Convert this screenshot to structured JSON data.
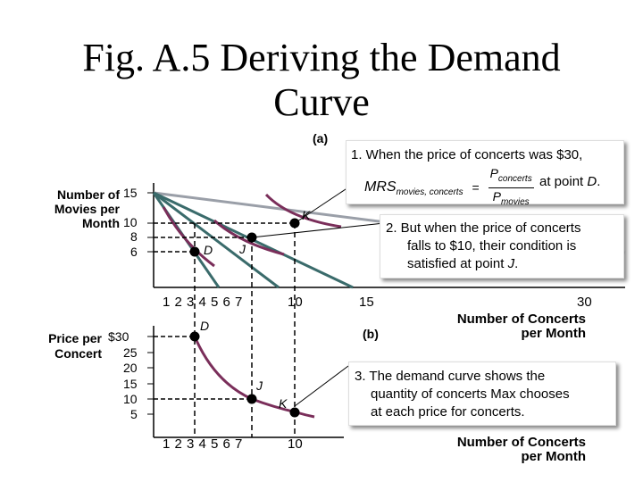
{
  "title": {
    "line1": "Fig. A.5 Deriving the Demand",
    "line2": "Curve"
  },
  "panel_a": {
    "label": "(a)",
    "y_axis_label": [
      "Number of",
      "Movies per",
      "Month"
    ],
    "y_ticks": [
      "15",
      "10",
      "8",
      "6"
    ],
    "x_ticks": [
      "1 2 3 4 5 6 7",
      "10",
      "15",
      "30"
    ],
    "x_axis_label": [
      "Number of Concerts",
      "per Month"
    ],
    "points": {
      "D": "D",
      "J": "J",
      "K": "K"
    }
  },
  "panel_b": {
    "label": "(b)",
    "y_axis_label": [
      "Price per",
      "Concert"
    ],
    "y_ticks": [
      "$30",
      "25",
      "20",
      "15",
      "10",
      "5"
    ],
    "x_ticks": [
      "1 2 3 4 5 6 7",
      "10"
    ],
    "x_axis_label": [
      "Number of Concerts",
      "per Month"
    ],
    "points": {
      "D": "D",
      "J": "J",
      "K": "K"
    }
  },
  "callouts": {
    "c1": {
      "line1": "1. When the price of concerts was $30,",
      "mrs": "MRS",
      "mrs_sub": "movies, concerts",
      "eq": "=",
      "num": "P",
      "num_sub": "concerts",
      "den": "P",
      "den_sub": "movies",
      "tail_text": "at point ",
      "tail_point": "D",
      "tail_end": "."
    },
    "c2": [
      "2. But when the price of concerts",
      "falls to $10, their condition is",
      "satisfied at point ",
      "J",
      "."
    ],
    "c3": [
      "3. The demand curve shows the",
      "quantity of concerts Max chooses",
      "at each price for concerts."
    ]
  },
  "colors": {
    "budget_line": "#3a6b6b",
    "indifference_curve": "#7a2e5a",
    "grey_line": "#9a9fa8",
    "dashed": "#000000"
  }
}
